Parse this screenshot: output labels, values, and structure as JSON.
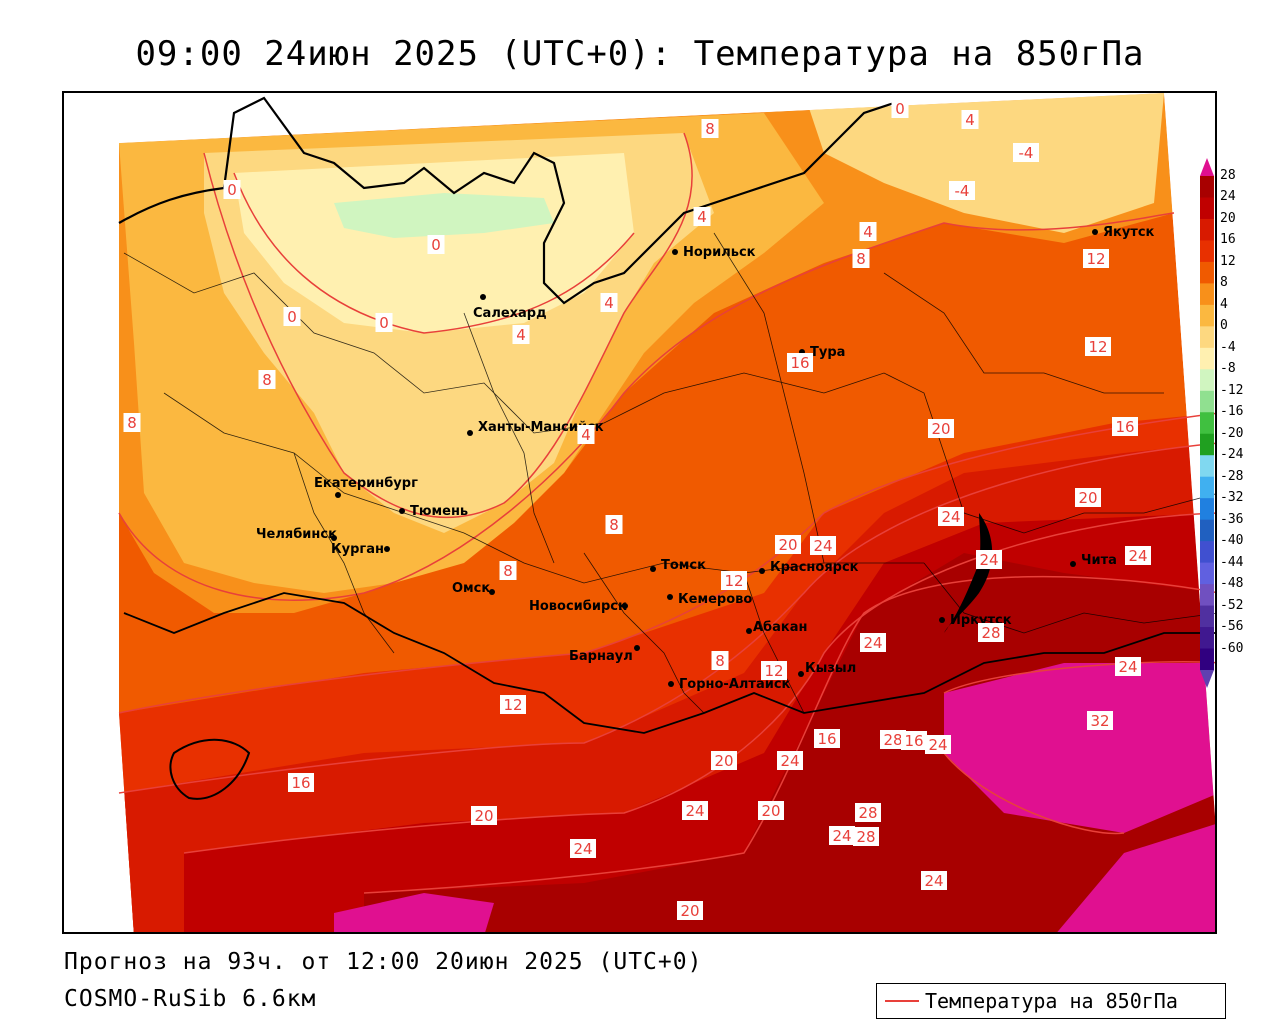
{
  "title": "09:00 24июн 2025 (UTC+0): Температура на 850гПа",
  "footer": {
    "forecast": "Прогноз на 93ч. от 12:00 20июн 2025 (UTC+0)",
    "model": "COSMO-RuSib 6.6км"
  },
  "legend": {
    "line_label": "Температура на 850гПа",
    "line_color": "#e8403a"
  },
  "colorbar": {
    "ticks": [
      "28",
      "24",
      "20",
      "16",
      "12",
      "8",
      "4",
      "0",
      "-4",
      "-8",
      "-12",
      "-16",
      "-20",
      "-24",
      "-28",
      "-32",
      "-36",
      "-40",
      "-44",
      "-48",
      "-52",
      "-56",
      "-60"
    ],
    "colors": [
      "#a80000",
      "#c00000",
      "#d81a00",
      "#e83000",
      "#f05a00",
      "#f8901a",
      "#fbb840",
      "#fdd880",
      "#fff0b0",
      "#d0f5c0",
      "#90e090",
      "#40c040",
      "#20a020",
      "#80d8f0",
      "#40b0f0",
      "#2080e0",
      "#2060c0",
      "#4050d0",
      "#6060e0",
      "#7050c0",
      "#5030a0",
      "#401890",
      "#300080"
    ],
    "top_color": "#e01090",
    "bottom_color": "#6040b0"
  },
  "cities": [
    {
      "name": "Якутск"
    },
    {
      "name": "Норильск"
    },
    {
      "name": "Салехард"
    },
    {
      "name": "Тура"
    },
    {
      "name": "Ханты-Мансийск"
    },
    {
      "name": "Екатеринбург"
    },
    {
      "name": "Тюмень"
    },
    {
      "name": "Челябинск"
    },
    {
      "name": "Курган"
    },
    {
      "name": "Омск"
    },
    {
      "name": "Новосибирск"
    },
    {
      "name": "Томск"
    },
    {
      "name": "Кемерово"
    },
    {
      "name": "Красноярск"
    },
    {
      "name": "Барнаул"
    },
    {
      "name": "Абакан"
    },
    {
      "name": "Горно-Алтайск"
    },
    {
      "name": "Кызыл"
    },
    {
      "name": "Иркутск"
    },
    {
      "name": "Чита"
    }
  ],
  "isotherm_labels": [
    "0",
    "4",
    "8",
    "0",
    "4",
    "4",
    "8",
    "-4",
    "-4",
    "0",
    "0",
    "0",
    "4",
    "4",
    "8",
    "8",
    "12",
    "12",
    "16",
    "16",
    "20",
    "20",
    "24",
    "24",
    "20",
    "24",
    "24",
    "28",
    "32",
    "24",
    "24",
    "28",
    "24",
    "16",
    "12",
    "8",
    "16",
    "20",
    "24",
    "28",
    "24",
    "28",
    "24",
    "20",
    "24",
    "20",
    "12",
    "8",
    "4",
    "8",
    "16",
    "20",
    "24",
    "12"
  ]
}
